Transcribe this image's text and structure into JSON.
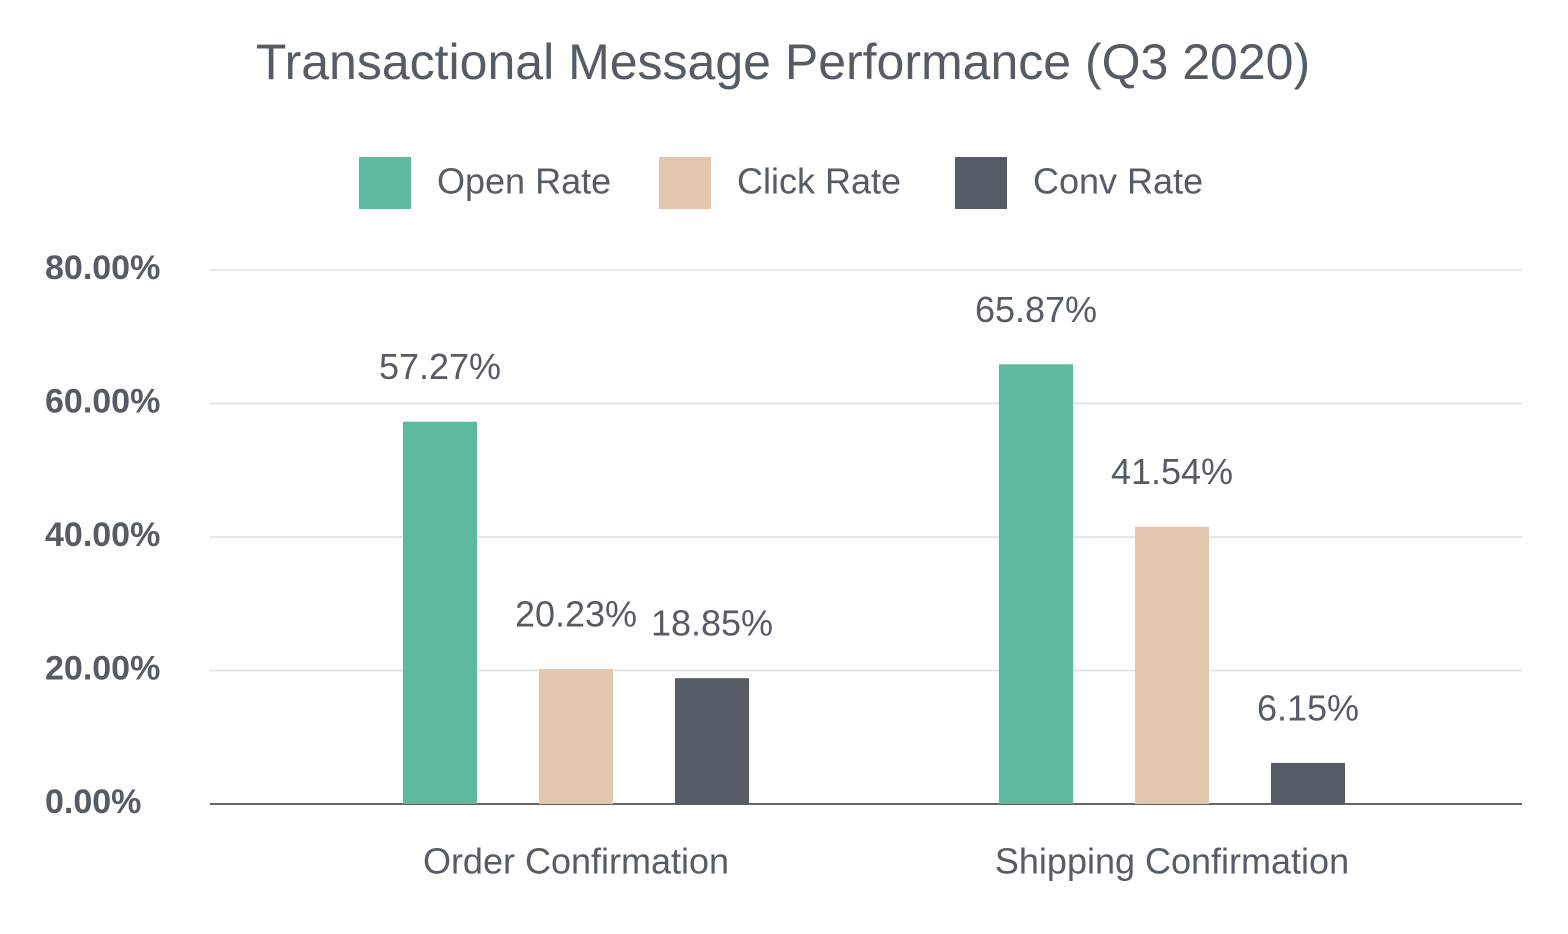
{
  "chart_data": {
    "type": "bar",
    "title": "Transactional Message Performance (Q3 2020)",
    "categories": [
      "Order Confirmation",
      "Shipping Confirmation"
    ],
    "series": [
      {
        "name": "Open Rate",
        "color": "#5dba9f",
        "values": [
          57.27,
          65.87
        ],
        "value_labels": [
          "57.27%",
          "65.87%"
        ]
      },
      {
        "name": "Click Rate",
        "color": "#e2c6ae",
        "values": [
          20.23,
          41.54
        ],
        "value_labels": [
          "20.23%",
          "41.54%"
        ]
      },
      {
        "name": "Conv Rate",
        "color": "#555c66",
        "values": [
          18.85,
          6.15
        ],
        "value_labels": [
          "18.85%",
          "6.15%"
        ]
      }
    ],
    "ylim": [
      0,
      80
    ],
    "yticks": [
      {
        "value": 0,
        "label": "0.00%"
      },
      {
        "value": 20,
        "label": "20.00%"
      },
      {
        "value": 40,
        "label": "40.00%"
      },
      {
        "value": 60,
        "label": "60.00%"
      },
      {
        "value": 80,
        "label": "80.00%"
      }
    ],
    "grid": true,
    "legend": "top"
  }
}
